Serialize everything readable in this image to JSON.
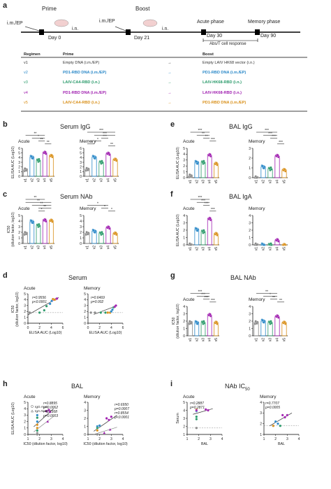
{
  "panel_labels": {
    "a": "a",
    "b": "b",
    "c": "c",
    "d": "d",
    "e": "e",
    "f": "f",
    "g": "g",
    "h": "h",
    "i": "i"
  },
  "timeline": {
    "prime": "Prime",
    "boost": "Boost",
    "route1": "i.m./EP",
    "route2": "i.m./EP",
    "in1": "i.n.",
    "in2": "i.n.",
    "day0": "Day 0",
    "day21": "Day 21",
    "day30": "Day 30",
    "day90": "Day 90",
    "acute": "Acute phase",
    "memory": "Memory phase",
    "response": "Abs/T cell response"
  },
  "regimen_table": {
    "headers": {
      "regimen": "Regimen",
      "prime": "Prime",
      "boost": "Boost"
    },
    "rows": [
      {
        "id": "v1",
        "prime": "Empty DNA (i.m./EP)",
        "boost": "Empty LAIV HK68 vector (i.n.)",
        "color": "#333333"
      },
      {
        "id": "v2",
        "prime": "PD1-RBD DNA (i.m./EP)",
        "boost": "PD1-RBD DNA (i.m./EP)",
        "color": "#2a88c8"
      },
      {
        "id": "v3",
        "prime": "LAIV-CA4-RBD (i.n.)",
        "boost": "LAIV-HK68-RBD (i.n.)",
        "color": "#2a9a6a"
      },
      {
        "id": "v4",
        "prime": "PD1-RBD DNA (i.m./EP)",
        "boost": "LAIV-HK68-RBD (i.n.)",
        "color": "#a020b0"
      },
      {
        "id": "v5",
        "prime": "LAIV-CA4-RBD (i.n.)",
        "boost": "PD1-RBD DNA (i.m./EP)",
        "color": "#d9901a"
      }
    ],
    "arrow": "→"
  },
  "colors": {
    "v1": "#888888",
    "v2": "#2a88c8",
    "v3": "#2a9a6a",
    "v4": "#a020b0",
    "v5": "#d9901a"
  },
  "groups": [
    "v1",
    "v2",
    "v3",
    "v4",
    "v5"
  ],
  "texts": {
    "serum_igg": "Serum IgG",
    "serum_nab": "Serum NAb",
    "serum": "Serum",
    "bal_igg": "BAL IgG",
    "bal_iga": "BAL IgA",
    "bal_nab": "BAL NAb",
    "bal": "BAL",
    "nab_ic50": "NAb IC",
    "ic50_sub": "50",
    "acute": "Acute",
    "memory": "Memory",
    "elisa_auc": "ELISA AUC (Log",
    "log_sub": "10",
    ")": ")",
    "ic50_dil": "(dilution factor, log",
    "elisa_auc_x": "ELISA AUC (Log",
    "ic50_x": "IC",
    "ic50_x2": " (dilution factor, log",
    "bal_x": "BAL",
    "serum_y": "Serum",
    "igg_auc": "IgG AUC",
    "iga_auc": "IgA AUC",
    "sig2": "**",
    "sig3": "***",
    "sig1": "*"
  },
  "chart_data": [
    {
      "panel": "b",
      "type": "bar",
      "title": "Serum IgG",
      "subtitle": "Acute",
      "categories": [
        "v1",
        "v2",
        "v3",
        "v4",
        "v5"
      ],
      "values": [
        1.4,
        4.1,
        3.4,
        5.0,
        4.4
      ],
      "ylim": [
        0,
        6
      ],
      "ylabel": "ELISA AUC (Log10)"
    },
    {
      "panel": "b",
      "type": "bar",
      "subtitle": "Memory",
      "categories": [
        "v1",
        "v2",
        "v3",
        "v4",
        "v5"
      ],
      "values": [
        1.5,
        4.1,
        3.0,
        4.8,
        3.6
      ],
      "ylim": [
        0,
        6
      ]
    },
    {
      "panel": "c",
      "type": "bar",
      "title": "Serum NAb",
      "subtitle": "Acute",
      "categories": [
        "v1",
        "v2",
        "v3",
        "v4",
        "v5"
      ],
      "values": [
        1.8,
        3.9,
        3.2,
        4.1,
        4.1
      ],
      "ylim": [
        0,
        5
      ],
      "ylabel": "IC50 (dilution factor, log10)"
    },
    {
      "panel": "c",
      "type": "bar",
      "subtitle": "Memory",
      "categories": [
        "v1",
        "v2",
        "v3",
        "v4",
        "v5"
      ],
      "values": [
        1.8,
        2.2,
        1.8,
        2.8,
        1.8
      ],
      "ylim": [
        0,
        5
      ]
    },
    {
      "panel": "e",
      "type": "bar",
      "title": "BAL IgG",
      "subtitle": "Acute",
      "categories": [
        "v1",
        "v2",
        "v3",
        "v4",
        "v5"
      ],
      "values": [
        0.3,
        2.6,
        2.6,
        3.8,
        2.4
      ],
      "ylim": [
        0,
        5
      ],
      "ylabel": "ELISA AUC (Log10)"
    },
    {
      "panel": "e",
      "type": "bar",
      "subtitle": "Memory",
      "categories": [
        "v1",
        "v2",
        "v3",
        "v4",
        "v5"
      ],
      "values": [
        0.0,
        1.1,
        0.9,
        2.2,
        0.8
      ],
      "ylim": [
        0,
        3
      ]
    },
    {
      "panel": "f",
      "type": "bar",
      "title": "BAL IgA",
      "subtitle": "Acute",
      "categories": [
        "v1",
        "v2",
        "v3",
        "v4",
        "v5"
      ],
      "values": [
        0.0,
        2.1,
        1.8,
        3.5,
        1.5
      ],
      "ylim": [
        0,
        4
      ],
      "ylabel": "ELISA AUC (Log10)"
    },
    {
      "panel": "f",
      "type": "bar",
      "subtitle": "Memory",
      "categories": [
        "v1",
        "v2",
        "v3",
        "v4",
        "v5"
      ],
      "values": [
        0.0,
        0.0,
        0.0,
        0.6,
        0.0
      ],
      "ylim": [
        0,
        4
      ]
    },
    {
      "panel": "g",
      "type": "bar",
      "title": "BAL NAb",
      "subtitle": "Acute",
      "categories": [
        "v1",
        "v2",
        "v3",
        "v4",
        "v5"
      ],
      "values": [
        1.8,
        1.8,
        1.8,
        2.8,
        1.8
      ],
      "ylim": [
        0,
        4
      ],
      "ylabel": "IC50 (dilution factor, log10)"
    },
    {
      "panel": "g",
      "type": "bar",
      "subtitle": "Memory",
      "categories": [
        "v1",
        "v2",
        "v3",
        "v4",
        "v5"
      ],
      "values": [
        1.8,
        2.0,
        1.8,
        2.6,
        1.8
      ],
      "ylim": [
        0,
        4
      ]
    },
    {
      "panel": "d",
      "type": "scatter",
      "title": "Serum",
      "subtitle": "Acute",
      "annotation": [
        "r=0.9556",
        "p<0.0001"
      ],
      "xlabel": "ELISA AUC (Log10)",
      "ylabel": "IC50 (dilution factor, log10)",
      "xlim": [
        0,
        6
      ],
      "ylim": [
        0,
        5
      ]
    },
    {
      "panel": "d",
      "type": "scatter",
      "subtitle": "Memory",
      "annotation": [
        "r=0.6469",
        "p=0.002"
      ],
      "xlabel": "ELISA AUC (Log10)",
      "xlim": [
        0,
        6
      ],
      "ylim": [
        0,
        5
      ]
    },
    {
      "panel": "h",
      "type": "scatter",
      "title": "BAL",
      "subtitle": "Acute",
      "legend": [
        "IgG AUC",
        "IgA AUC"
      ],
      "annotation": [
        "r=0.8895",
        "p=0.0062",
        "r=0.7368",
        "p=0.0003"
      ],
      "xlabel": "IC50 (dilution factor, log10)",
      "ylabel": "ELISA AUC (Log10)",
      "xlim": [
        1,
        4
      ],
      "ylim": [
        0,
        5
      ]
    },
    {
      "panel": "h",
      "type": "scatter",
      "subtitle": "Memory",
      "annotation": [
        "r=0.6950",
        "p=0.0007",
        "r=0.8554",
        "p<0.0001"
      ],
      "xlabel": "IC50 (dilution factor, log10)",
      "xlim": [
        1,
        4
      ],
      "ylim": [
        0,
        4
      ]
    },
    {
      "panel": "i",
      "type": "scatter",
      "title": "NAb IC50",
      "subtitle": "Acute",
      "annotation": [
        "r=0.2887",
        "p=0.2871"
      ],
      "xlabel": "BAL",
      "ylabel": "Serum",
      "xlim": [
        1,
        4
      ],
      "ylim": [
        1,
        5
      ]
    },
    {
      "panel": "i",
      "type": "scatter",
      "subtitle": "Memory",
      "annotation": [
        "r=0.7707",
        "p=0.0005"
      ],
      "xlabel": "BAL",
      "xlim": [
        1,
        4
      ],
      "ylim": [
        1,
        4
      ]
    }
  ],
  "tick_labels": {
    "y6": [
      "0",
      "1",
      "2",
      "3",
      "4",
      "5",
      "6"
    ],
    "y5": [
      "0",
      "1",
      "2",
      "3",
      "4",
      "5"
    ],
    "y4": [
      "0",
      "1",
      "2",
      "3",
      "4"
    ],
    "y3": [
      "0",
      "1",
      "2",
      "3"
    ],
    "x1234": [
      "1",
      "2",
      "3",
      "4"
    ],
    "x0246": [
      "0",
      "2",
      "4",
      "6"
    ]
  }
}
